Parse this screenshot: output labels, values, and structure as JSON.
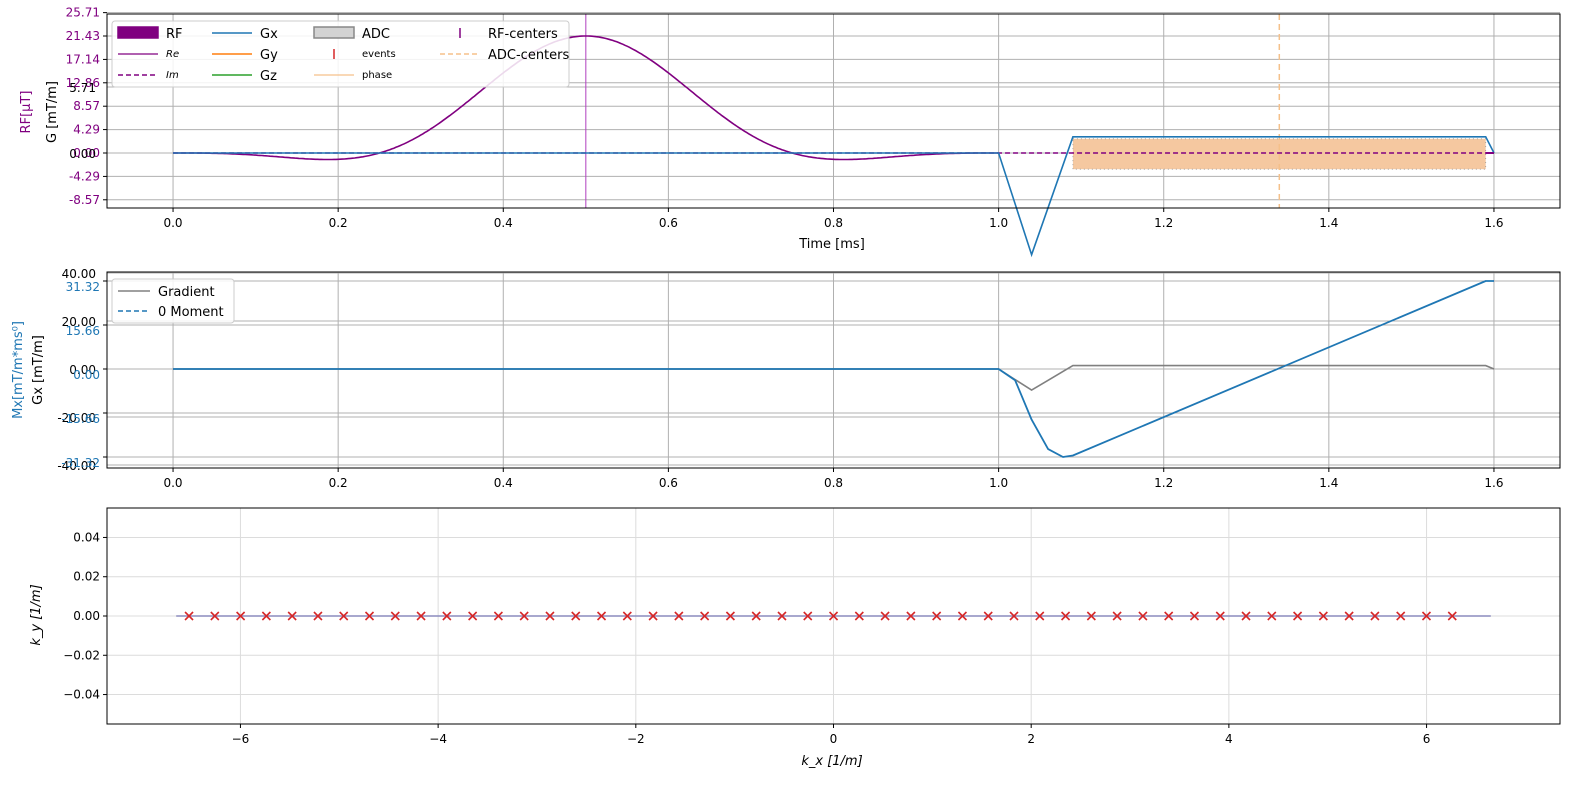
{
  "chart_data": [
    {
      "type": "line",
      "xlabel": "Time [ms]",
      "ylabel_left_outer": "RF[μT]",
      "ylabel_left_inner": "G [mT/m]",
      "xlim": [
        -0.08,
        1.68
      ],
      "x_ticks": [
        0.0,
        0.2,
        0.4,
        0.6,
        0.8,
        1.0,
        1.2,
        1.4,
        1.6
      ],
      "x_tick_labels": [
        "0.0",
        "0.2",
        "0.4",
        "0.6",
        "0.8",
        "1.0",
        "1.2",
        "1.4",
        "1.6"
      ],
      "rf_ylim": [
        -12.86,
        25.71
      ],
      "rf_ticks": [
        25.71,
        21.43,
        17.14,
        12.86,
        8.57,
        4.29,
        0.0,
        -4.29,
        -8.57
      ],
      "rf_tick_labels": [
        "25.71",
        "21.43",
        "17.14",
        "12.86",
        "8.57",
        "4.29",
        "0.00",
        "-4.29",
        "-8.57"
      ],
      "g_ticks": [
        5.71,
        0.0
      ],
      "g_tick_labels": [
        "5.71",
        "0.00"
      ],
      "grid": true,
      "legend_position": "top-left",
      "legend": [
        {
          "label": "RF",
          "kind": "patch",
          "color": "#800080"
        },
        {
          "label": "Re",
          "kind": "line",
          "color": "#800080",
          "small": true
        },
        {
          "label": "Im",
          "kind": "dashed",
          "color": "#800080",
          "small": true
        },
        {
          "label": "Gx",
          "kind": "line",
          "color": "#1f77b4"
        },
        {
          "label": "Gy",
          "kind": "line",
          "color": "#ff7f0e"
        },
        {
          "label": "Gz",
          "kind": "line",
          "color": "#2ca02c"
        },
        {
          "label": "ADC",
          "kind": "patch",
          "color": "#d3d3d3"
        },
        {
          "label": "events",
          "kind": "tick",
          "color": "#d62728",
          "small": true
        },
        {
          "label": "phase",
          "kind": "line",
          "color": "#f5c08a",
          "small": true
        },
        {
          "label": "RF-centers",
          "kind": "tick",
          "color": "#800080"
        },
        {
          "label": "ADC-centers",
          "kind": "dashed",
          "color": "#f5c08a"
        }
      ],
      "rf_pulse": {
        "start_ms": 0.0,
        "end_ms": 1.0,
        "peak_uT": 21.43,
        "center_ms": 0.5,
        "type": "sinc"
      },
      "rf_center_ms": 0.5,
      "adc_center_ms": 1.34,
      "adc_window_ms": [
        1.09,
        1.59
      ],
      "gx_points_ms": [
        [
          1.0,
          0.0
        ],
        [
          1.04,
          -8.8
        ],
        [
          1.09,
          1.4
        ],
        [
          1.59,
          1.4
        ],
        [
          1.6,
          0.0
        ]
      ],
      "colors": {
        "rf": "#800080",
        "gx": "#1f77b4",
        "adc_fill": "#f5c8a0",
        "adc_center": "#f5c08a"
      }
    },
    {
      "type": "line",
      "ylabel_left_outer": "Mx[mT/m*ms⁰]",
      "ylabel_left_inner": "Gx [mT/m]",
      "xlim": [
        -0.08,
        1.68
      ],
      "x_ticks": [
        0.0,
        0.2,
        0.4,
        0.6,
        0.8,
        1.0,
        1.2,
        1.4,
        1.6
      ],
      "x_tick_labels": [
        "0.0",
        "0.2",
        "0.4",
        "0.6",
        "0.8",
        "1.0",
        "1.2",
        "1.4",
        "1.6"
      ],
      "g_ticks": [
        40.0,
        20.0,
        0.0,
        -20.0,
        -40.0
      ],
      "g_tick_labels": [
        "40.00",
        "20.00",
        "0.00",
        "-20.00",
        "-40.00"
      ],
      "m_ticks": [
        31.32,
        15.66,
        0.0,
        -15.66,
        -31.32
      ],
      "m_tick_labels": [
        "31.32",
        "15.66",
        "0.00",
        "-15.66",
        "-31.32"
      ],
      "m_ylim": [
        -34.0,
        31.32
      ],
      "grid": true,
      "legend_position": "top-left",
      "series": [
        {
          "name": "Gradient",
          "color": "#808080",
          "style": "solid",
          "points_ms_mTm": [
            [
              0.0,
              0.0
            ],
            [
              1.0,
              0.0
            ],
            [
              1.04,
              -8.8
            ],
            [
              1.09,
              1.4
            ],
            [
              1.59,
              1.4
            ],
            [
              1.6,
              0.0
            ]
          ]
        },
        {
          "name": "0 Moment",
          "color": "#1f77b4",
          "style": "dashed",
          "points_ms_M": [
            [
              0.0,
              0.0
            ],
            [
              1.0,
              0.0
            ],
            [
              1.02,
              -4.0
            ],
            [
              1.04,
              -18.0
            ],
            [
              1.06,
              -28.5
            ],
            [
              1.078,
              -31.32
            ],
            [
              1.09,
              -30.8
            ],
            [
              1.59,
              31.32
            ],
            [
              1.6,
              31.32
            ]
          ]
        }
      ]
    },
    {
      "type": "scatter",
      "xlabel": "k_x [1/m]",
      "ylabel": "k_y [1/m]",
      "xlim": [
        -7.35,
        7.35
      ],
      "ylim": [
        -0.055,
        0.055
      ],
      "x_ticks": [
        -6,
        -4,
        -2,
        0,
        2,
        4,
        6
      ],
      "x_tick_labels": [
        "−6",
        "−4",
        "−2",
        "0",
        "2",
        "4",
        "6"
      ],
      "y_ticks": [
        0.04,
        0.02,
        0.0,
        -0.02,
        -0.04
      ],
      "y_tick_labels": [
        "0.04",
        "0.02",
        "0.00",
        "−0.02",
        "−0.04"
      ],
      "grid": true,
      "trajectory": {
        "x_start": -6.65,
        "x_end": 6.65,
        "y": 0.0,
        "color": "#8c8cbe"
      },
      "samples": {
        "count": 50,
        "x_first": -6.52,
        "x_last": 6.26,
        "y": 0.0,
        "marker": "x",
        "color": "#d62728"
      }
    }
  ]
}
